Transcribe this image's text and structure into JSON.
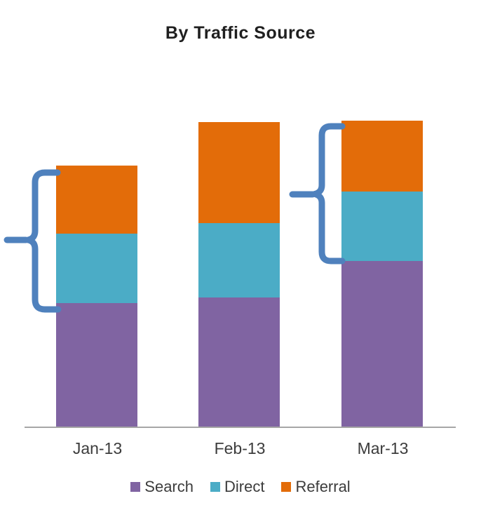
{
  "chart_data": {
    "type": "bar",
    "stacked": true,
    "title": "By Traffic Source",
    "categories": [
      "Jan-13",
      "Feb-13",
      "Mar-13"
    ],
    "series": [
      {
        "name": "Search",
        "color": "#8064A2",
        "values": [
          176,
          184,
          236
        ]
      },
      {
        "name": "Direct",
        "color": "#4BACC6",
        "values": [
          99,
          106,
          99
        ]
      },
      {
        "name": "Referral",
        "color": "#E36C09",
        "values": [
          97,
          144,
          101
        ]
      }
    ],
    "value_units": "relative (no value axis shown in chart)",
    "totals": [
      372,
      434,
      436
    ],
    "xlabel": "",
    "ylabel": "",
    "grid": false,
    "legend_position": "bottom",
    "annotations": [
      {
        "shape": "left-curly-brace",
        "color": "#4F81BD",
        "spans": "Direct + Referral segments of Jan-13 bar"
      },
      {
        "shape": "left-curly-brace",
        "color": "#4F81BD",
        "spans": "Direct + Referral segments of Mar-13 bar"
      }
    ]
  },
  "legend": {
    "items": [
      {
        "label": "Search",
        "color": "#8064A2"
      },
      {
        "label": "Direct",
        "color": "#4BACC6"
      },
      {
        "label": "Referral",
        "color": "#E36C09"
      }
    ]
  },
  "colors": {
    "axis_line": "#A6A6A6",
    "label_text": "#3C3C3C",
    "title_text": "#1F1F1F",
    "brace": "#4F81BD",
    "background": "#FFFFFF"
  }
}
